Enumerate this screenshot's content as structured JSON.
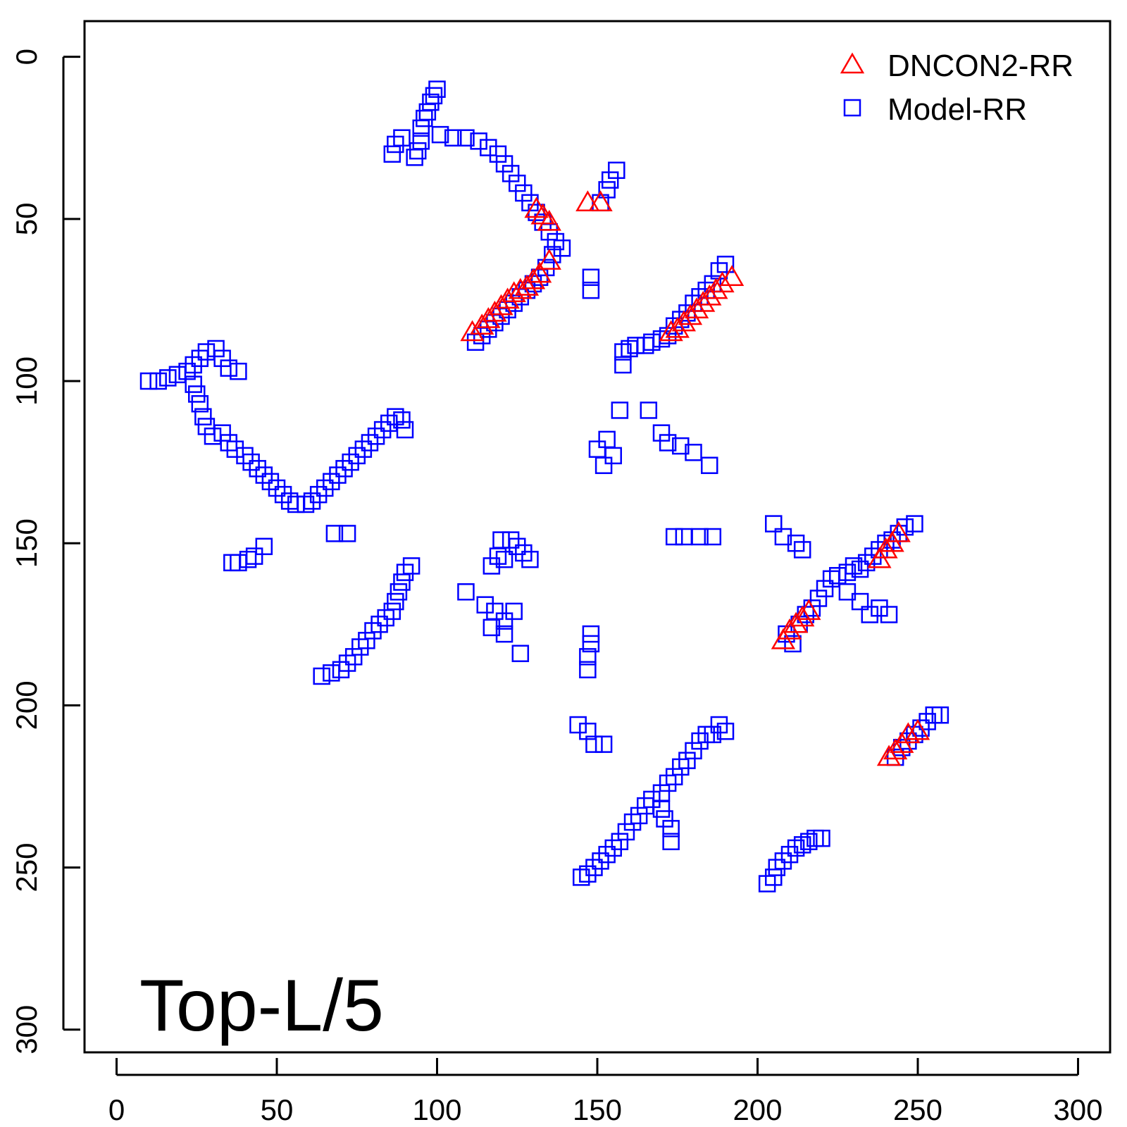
{
  "chart_data": {
    "type": "scatter",
    "title": "",
    "xlabel": "",
    "ylabel": "",
    "xlim": [
      -10,
      310
    ],
    "ylim": [
      -11,
      307
    ],
    "y_inverted": true,
    "x_ticks": [
      0,
      50,
      100,
      150,
      200,
      250,
      300
    ],
    "y_ticks": [
      0,
      50,
      100,
      150,
      200,
      250,
      300
    ],
    "x_tick_labels": [
      "0",
      "50",
      "100",
      "150",
      "200",
      "250",
      "300"
    ],
    "y_tick_labels": [
      "0",
      "50",
      "100",
      "150",
      "200",
      "250",
      "300"
    ],
    "grid": false,
    "legend_position": "top-right",
    "annotation": "Top-L/5",
    "series": [
      {
        "name": "DNCON2-RR",
        "marker": "triangle",
        "color": "#ff0000",
        "points": [
          [
            131,
            47
          ],
          [
            133,
            49
          ],
          [
            135,
            51
          ],
          [
            135,
            63
          ],
          [
            132,
            67
          ],
          [
            130,
            69
          ],
          [
            128,
            71
          ],
          [
            126,
            72
          ],
          [
            124,
            73
          ],
          [
            122,
            75
          ],
          [
            120,
            77
          ],
          [
            118,
            79
          ],
          [
            116,
            81
          ],
          [
            114,
            83
          ],
          [
            111,
            85
          ],
          [
            147,
            45
          ],
          [
            151,
            45
          ],
          [
            192,
            68
          ],
          [
            189,
            70
          ],
          [
            187,
            72
          ],
          [
            185,
            74
          ],
          [
            183,
            76
          ],
          [
            181,
            78
          ],
          [
            179,
            80
          ],
          [
            177,
            82
          ],
          [
            175,
            84
          ],
          [
            173,
            85
          ],
          [
            244,
            147
          ],
          [
            242,
            150
          ],
          [
            240,
            152
          ],
          [
            238,
            155
          ],
          [
            216,
            171
          ],
          [
            214,
            173
          ],
          [
            212,
            175
          ],
          [
            210,
            177
          ],
          [
            208,
            180
          ],
          [
            250,
            208
          ],
          [
            247,
            209
          ],
          [
            245,
            212
          ],
          [
            243,
            214
          ],
          [
            241,
            216
          ]
        ]
      },
      {
        "name": "Model-RR",
        "marker": "square",
        "color": "#0000ff",
        "points": [
          [
            100,
            10
          ],
          [
            99,
            12
          ],
          [
            98,
            14
          ],
          [
            97,
            17
          ],
          [
            96,
            19
          ],
          [
            95,
            22
          ],
          [
            95,
            26
          ],
          [
            94,
            29
          ],
          [
            93,
            31
          ],
          [
            89,
            25
          ],
          [
            87,
            27
          ],
          [
            86,
            30
          ],
          [
            101,
            24
          ],
          [
            105,
            25
          ],
          [
            109,
            25
          ],
          [
            113,
            26
          ],
          [
            116,
            28
          ],
          [
            119,
            30
          ],
          [
            121,
            33
          ],
          [
            123,
            36
          ],
          [
            125,
            39
          ],
          [
            127,
            42
          ],
          [
            129,
            45
          ],
          [
            131,
            48
          ],
          [
            133,
            51
          ],
          [
            135,
            54
          ],
          [
            137,
            57
          ],
          [
            139,
            59
          ],
          [
            136,
            61
          ],
          [
            134,
            65
          ],
          [
            132,
            68
          ],
          [
            130,
            70
          ],
          [
            128,
            72
          ],
          [
            126,
            74
          ],
          [
            124,
            76
          ],
          [
            122,
            78
          ],
          [
            120,
            80
          ],
          [
            118,
            82
          ],
          [
            116,
            84
          ],
          [
            114,
            86
          ],
          [
            112,
            88
          ],
          [
            156,
            35
          ],
          [
            154,
            38
          ],
          [
            153,
            41
          ],
          [
            151,
            45
          ],
          [
            148,
            68
          ],
          [
            148,
            72
          ],
          [
            190,
            64
          ],
          [
            188,
            66
          ],
          [
            186,
            70
          ],
          [
            184,
            72
          ],
          [
            182,
            74
          ],
          [
            180,
            76
          ],
          [
            178,
            79
          ],
          [
            176,
            81
          ],
          [
            174,
            83
          ],
          [
            172,
            86
          ],
          [
            170,
            87
          ],
          [
            167,
            88
          ],
          [
            165,
            89
          ],
          [
            162,
            89
          ],
          [
            160,
            90
          ],
          [
            158,
            91
          ],
          [
            158,
            95
          ],
          [
            10,
            100
          ],
          [
            13,
            100
          ],
          [
            16,
            99
          ],
          [
            19,
            98
          ],
          [
            22,
            97
          ],
          [
            24,
            95
          ],
          [
            26,
            93
          ],
          [
            28,
            91
          ],
          [
            31,
            90
          ],
          [
            33,
            93
          ],
          [
            35,
            96
          ],
          [
            38,
            97
          ],
          [
            24,
            101
          ],
          [
            25,
            104
          ],
          [
            26,
            107
          ],
          [
            27,
            111
          ],
          [
            28,
            114
          ],
          [
            30,
            117
          ],
          [
            33,
            116
          ],
          [
            35,
            119
          ],
          [
            37,
            121
          ],
          [
            40,
            123
          ],
          [
            42,
            125
          ],
          [
            44,
            127
          ],
          [
            46,
            129
          ],
          [
            48,
            131
          ],
          [
            50,
            133
          ],
          [
            52,
            135
          ],
          [
            54,
            137
          ],
          [
            56,
            138
          ],
          [
            59,
            138
          ],
          [
            61,
            137
          ],
          [
            63,
            135
          ],
          [
            65,
            133
          ],
          [
            67,
            131
          ],
          [
            69,
            129
          ],
          [
            71,
            127
          ],
          [
            73,
            125
          ],
          [
            75,
            123
          ],
          [
            77,
            121
          ],
          [
            79,
            119
          ],
          [
            81,
            117
          ],
          [
            83,
            115
          ],
          [
            85,
            113
          ],
          [
            87,
            111
          ],
          [
            89,
            112
          ],
          [
            90,
            115
          ],
          [
            68,
            147
          ],
          [
            72,
            147
          ],
          [
            36,
            156
          ],
          [
            38,
            156
          ],
          [
            41,
            155
          ],
          [
            43,
            154
          ],
          [
            46,
            151
          ],
          [
            92,
            157
          ],
          [
            90,
            159
          ],
          [
            89,
            162
          ],
          [
            88,
            165
          ],
          [
            87,
            168
          ],
          [
            86,
            171
          ],
          [
            84,
            173
          ],
          [
            82,
            175
          ],
          [
            80,
            177
          ],
          [
            78,
            180
          ],
          [
            76,
            182
          ],
          [
            74,
            185
          ],
          [
            72,
            187
          ],
          [
            70,
            189
          ],
          [
            67,
            190
          ],
          [
            64,
            191
          ],
          [
            123,
            149
          ],
          [
            125,
            151
          ],
          [
            127,
            153
          ],
          [
            129,
            155
          ],
          [
            121,
            155
          ],
          [
            117,
            157
          ],
          [
            109,
            165
          ],
          [
            115,
            169
          ],
          [
            118,
            171
          ],
          [
            121,
            174
          ],
          [
            124,
            171
          ],
          [
            117,
            176
          ],
          [
            121,
            178
          ],
          [
            126,
            184
          ],
          [
            120,
            149
          ],
          [
            119,
            154
          ],
          [
            157,
            109
          ],
          [
            153,
            118
          ],
          [
            150,
            121
          ],
          [
            152,
            126
          ],
          [
            155,
            123
          ],
          [
            166,
            109
          ],
          [
            170,
            116
          ],
          [
            172,
            119
          ],
          [
            176,
            120
          ],
          [
            180,
            122
          ],
          [
            185,
            126
          ],
          [
            174,
            148
          ],
          [
            177,
            148
          ],
          [
            182,
            148
          ],
          [
            186,
            148
          ],
          [
            205,
            144
          ],
          [
            208,
            148
          ],
          [
            212,
            150
          ],
          [
            214,
            152
          ],
          [
            209,
            178
          ],
          [
            211,
            181
          ],
          [
            213,
            175
          ],
          [
            215,
            172
          ],
          [
            217,
            170
          ],
          [
            219,
            167
          ],
          [
            221,
            164
          ],
          [
            223,
            161
          ],
          [
            225,
            160
          ],
          [
            228,
            159
          ],
          [
            230,
            157
          ],
          [
            232,
            158
          ],
          [
            234,
            156
          ],
          [
            236,
            154
          ],
          [
            238,
            152
          ],
          [
            240,
            150
          ],
          [
            242,
            149
          ],
          [
            244,
            147
          ],
          [
            246,
            145
          ],
          [
            249,
            144
          ],
          [
            228,
            165
          ],
          [
            232,
            168
          ],
          [
            235,
            172
          ],
          [
            238,
            170
          ],
          [
            241,
            172
          ],
          [
            148,
            178
          ],
          [
            148,
            181
          ],
          [
            147,
            185
          ],
          [
            147,
            189
          ],
          [
            144,
            206
          ],
          [
            147,
            208
          ],
          [
            149,
            212
          ],
          [
            152,
            212
          ],
          [
            176,
            219
          ],
          [
            178,
            217
          ],
          [
            180,
            214
          ],
          [
            182,
            211
          ],
          [
            184,
            209
          ],
          [
            186,
            209
          ],
          [
            188,
            206
          ],
          [
            190,
            208
          ],
          [
            174,
            222
          ],
          [
            172,
            224
          ],
          [
            170,
            227
          ],
          [
            167,
            229
          ],
          [
            165,
            231
          ],
          [
            163,
            234
          ],
          [
            161,
            236
          ],
          [
            159,
            239
          ],
          [
            157,
            242
          ],
          [
            155,
            244
          ],
          [
            153,
            246
          ],
          [
            151,
            248
          ],
          [
            149,
            250
          ],
          [
            147,
            252
          ],
          [
            145,
            253
          ],
          [
            170,
            232
          ],
          [
            171,
            235
          ],
          [
            173,
            238
          ],
          [
            173,
            242
          ],
          [
            243,
            216
          ],
          [
            245,
            213
          ],
          [
            247,
            211
          ],
          [
            249,
            209
          ],
          [
            251,
            207
          ],
          [
            253,
            205
          ],
          [
            255,
            203
          ],
          [
            257,
            203
          ],
          [
            205,
            253
          ],
          [
            203,
            255
          ],
          [
            206,
            250
          ],
          [
            208,
            248
          ],
          [
            210,
            246
          ],
          [
            212,
            244
          ],
          [
            214,
            243
          ],
          [
            216,
            242
          ],
          [
            218,
            241
          ],
          [
            220,
            241
          ]
        ]
      }
    ]
  }
}
